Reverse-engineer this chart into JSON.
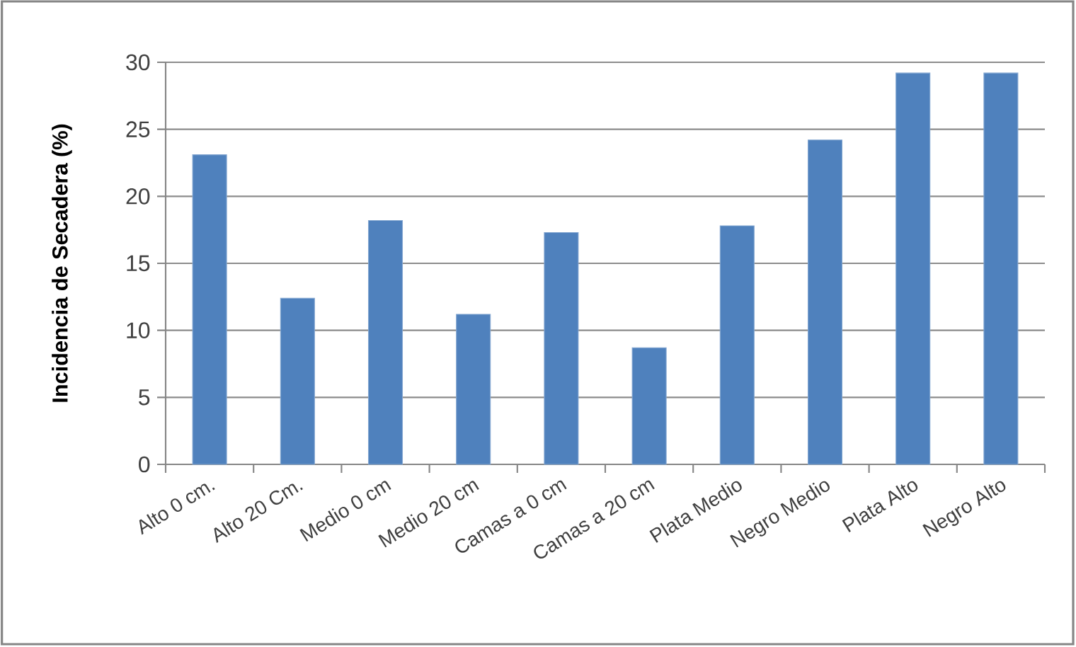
{
  "chart_data": {
    "type": "bar",
    "ylabel": "Incidencia de Secadera (%)",
    "categories": [
      "Alto 0 cm.",
      "Alto 20 Cm.",
      "Medio 0 cm",
      "Medio 20 cm",
      "Camas a 0 cm",
      "Camas a 20 cm",
      "Plata Medio",
      "Negro Medio",
      "Plata Alto",
      "Negro Alto"
    ],
    "values": [
      23.1,
      12.4,
      18.2,
      11.2,
      17.3,
      8.7,
      17.8,
      24.2,
      29.2,
      29.2
    ],
    "color": "#4f81bd",
    "ylim": [
      0,
      30
    ],
    "yticks": [
      0,
      5,
      10,
      15,
      20,
      25,
      30
    ],
    "grid": "y"
  }
}
